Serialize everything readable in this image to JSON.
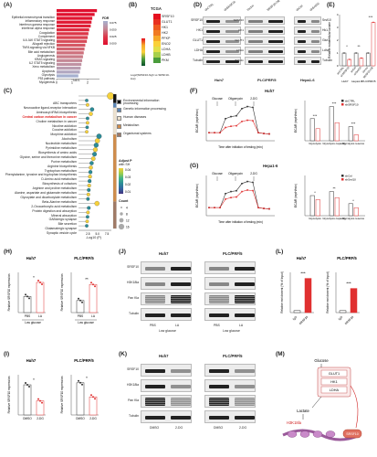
{
  "A": {
    "label": "(A)",
    "pathways": [
      "Epithelial mesenchymal transition",
      "Inflammatory response",
      "Interferon gamma response",
      "Interferon alpha response",
      "Coagulation",
      "Complement",
      "IL6 JAK STAT3 signaling",
      "Allograft rejection",
      "TNFA signaling via NFKB",
      "Bile acid metabolism",
      "Angiogenesis",
      "KRAS signaling",
      "IL2 STAT5 signaling",
      "Xeno metabolism",
      "Apoptosis",
      "Glycolysis",
      "P53 pathway",
      "Myogenesis"
    ],
    "nes": [
      2.6,
      2.45,
      2.3,
      2.25,
      2.2,
      2.1,
      2.05,
      2.0,
      1.95,
      1.85,
      1.8,
      1.75,
      1.7,
      1.65,
      1.6,
      1.55,
      1.5,
      1.4
    ],
    "fdr_colors": [
      "#e0102f",
      "#e0112f",
      "#e01530",
      "#e01a33",
      "#df2038",
      "#de2b40",
      "#dc3648",
      "#da4150",
      "#d84c5a",
      "#d55865",
      "#d26470",
      "#ce707c",
      "#ca7c88",
      "#c58896",
      "#c092a3",
      "#b99db1",
      "#b1a7c0",
      "#a6b1cf"
    ],
    "xaxis": "NES",
    "xticks": [
      "0",
      "1",
      "2"
    ],
    "legend_title": "FDR",
    "legend_ticks": [
      "0.075",
      "0.050",
      "0.025",
      "0.000"
    ]
  },
  "B": {
    "label": "(B)",
    "title": "TCGA",
    "genes": [
      "SRSF10",
      "GLUT1",
      "HK1",
      "HK2",
      "PFKP",
      "ENO2",
      "LDHA",
      "LDHB",
      "PKM"
    ],
    "legend_label": "Log2(SRSF10-high vs SRSF10-low)"
  },
  "C": {
    "label": "(C)",
    "pathways": [
      "ABC transporters",
      "Neuroactive ligand-receptor interaction",
      "Aminoacyl-tRNA biosynthesis",
      "Central carbon metabolism in cancer",
      "Choline metabolism in cancer",
      "Nicotine addiction",
      "Cocaine addiction",
      "Morphine addiction",
      "Alcoholism",
      "Nucleotide metabolism",
      "Pyrimidine metabolism",
      "Biosynthesis of amino acids",
      "Glycine, serine and threonine metabolism",
      "Purine metabolism",
      "Arginine biosynthesis",
      "Tryptophan metabolism",
      "Phenylalanine, tyrosine and tryptophan biosynthesis",
      "D-Amino acid metabolism",
      "Biosynthesis of cofactors",
      "Arginine and proline metabolism",
      "Alanine, aspartate and glutamate metabolism",
      "Glyoxylate and dicarboxylate metabolism",
      "Beta-Alanine metabolism",
      "2-Oxocarboxylic acid metabolism",
      "Protein digestion and absorption",
      "Mineral absorption",
      "GABAergic synapse",
      "Bile secretion",
      "Glutamatergic synapse",
      "Synaptic vesicle cycle"
    ],
    "highlight": "Central carbon metabolism in cancer",
    "categories": [
      "Environmental information processing",
      "Genetic information processing",
      "Human diseases",
      "Metabolism",
      "Organismal systems"
    ],
    "cat_colors": [
      "#111111",
      "#5b86b6",
      "#ede2cf",
      "#cf8c4b",
      "#a07a66"
    ],
    "legend_adj_title": "Adjust P",
    "legend_adj_sub": "with SH",
    "legend_adj_ticks": [
      "0.04",
      "0.03",
      "0.02",
      "0.01"
    ],
    "legend_count_title": "Count",
    "legend_count_values": [
      "4",
      "8",
      "12",
      "16"
    ],
    "xaxis": "-Log10 (P)",
    "xticks": [
      "2.5",
      "5.0",
      "7.5"
    ],
    "bar_values": [
      7.8,
      2.0,
      2.2,
      3.3,
      3.0,
      2.2,
      2.2,
      2.1,
      2.0,
      5.0,
      4.6,
      4.3,
      4.1,
      3.9,
      3.6,
      3.2,
      3.0,
      2.9,
      2.8,
      2.7,
      2.6,
      2.5,
      2.4,
      2.3,
      4.5,
      2.5,
      2.3,
      2.2,
      2.1,
      2.0
    ]
  },
  "D": {
    "label": "(D)",
    "lines": [
      "Huh7",
      "PLC/PRF/5",
      "Hepa1-6"
    ],
    "lanes": [
      "shCTRL",
      "shSRSF10",
      "Vector",
      "SRSF10-OE",
      "shCtrl",
      "shSrsf10"
    ],
    "proteins_left": [
      "SRSF10",
      "HK1",
      "GLUT1",
      "LDHA",
      "Tubulin"
    ],
    "proteins_right": [
      "Srsf10",
      "Hk1",
      "Glut1",
      "Ldha",
      "Tubulin"
    ]
  },
  "E": {
    "label": "(E)",
    "ylabel": "Relative extracellular lactate",
    "groups": [
      "shCTRL",
      "shSRSF10",
      "shCtrl",
      "shSrsf10",
      "Vector",
      "SRSF10-OE"
    ],
    "group_lines": [
      "Huh7",
      "Hepa1-6",
      "PLC/PRF/5"
    ],
    "values": [
      1.0,
      0.5,
      1.0,
      0.6,
      1.0,
      3.4
    ],
    "sig": [
      "*",
      "**",
      "***"
    ],
    "yticks": [
      "0",
      "1",
      "2",
      "3",
      "4"
    ]
  },
  "F": {
    "label": "(F)",
    "title": "Huh7",
    "ylabel": "ECAR (mpH/min)",
    "xlabel": "Time after initiation of testing (min)",
    "injections": [
      "Glucose",
      "Oligomycin",
      "2-DG"
    ],
    "legend": [
      "shCTRL",
      "shSRSF10"
    ],
    "bar_groups": [
      "Glycolysis",
      "Glycolysis capacity",
      "Glycolysis reserve"
    ],
    "sig": [
      "***",
      "***",
      "***"
    ]
  },
  "G": {
    "label": "(G)",
    "title": "Hepa1-6",
    "ylabel": "ECAR (mpH/min)",
    "xlabel": "Time after initiation of testing (min)",
    "injections": [
      "Glucose",
      "Oligomycin",
      "2-DG"
    ],
    "legend": [
      "shCtrl",
      "shSrsf10"
    ],
    "bar_groups": [
      "Glycolysis",
      "Glycolysis capacity",
      "Glycolysis reserve"
    ],
    "sig": [
      "*",
      "**",
      "*"
    ]
  },
  "H": {
    "label": "(H)",
    "lines": [
      "Huh7",
      "PLC/PRF/5"
    ],
    "ylabel": "Relative SRSF10 expression",
    "groups": [
      "PBS",
      "LA"
    ],
    "footer": "Low glucose",
    "sig": [
      "*",
      "**"
    ]
  },
  "I": {
    "label": "(I)",
    "lines": [
      "Huh7",
      "PLC/PRF/5"
    ],
    "ylabel": "Relative SRSF10 expression",
    "groups": [
      "DMSO",
      "2-DG"
    ],
    "sig": [
      "*",
      "*"
    ]
  },
  "J": {
    "label": "(J)",
    "lines": [
      "Huh7",
      "PLC/PRF/5"
    ],
    "proteins": [
      "SRSF10",
      "H3K18la",
      "Pan Kla",
      "Tubulin"
    ],
    "groups": [
      "PBS",
      "LA"
    ],
    "footer": "Low glucose"
  },
  "K": {
    "label": "(K)",
    "lines": [
      "Huh7",
      "PLC/PRF/5"
    ],
    "proteins": [
      "SRSF10",
      "H3K18la",
      "Pan Kla",
      "Tubulin"
    ],
    "groups": [
      "DMSO",
      "2-DG"
    ]
  },
  "L": {
    "label": "(L)",
    "lines": [
      "Huh7",
      "PLC/PRF/5"
    ],
    "ylabel": "Relative enrichment (% of Input)",
    "groups": [
      "IgG",
      "SRSF10"
    ],
    "sig": [
      "***",
      "***"
    ]
  },
  "M": {
    "label": "(M)",
    "glucose": "Glucose",
    "genes": [
      "GLUT1",
      "HK1",
      "LDHA"
    ],
    "lactate": "Lactate",
    "mark": "H3K18la",
    "target": "SRSF10"
  }
}
